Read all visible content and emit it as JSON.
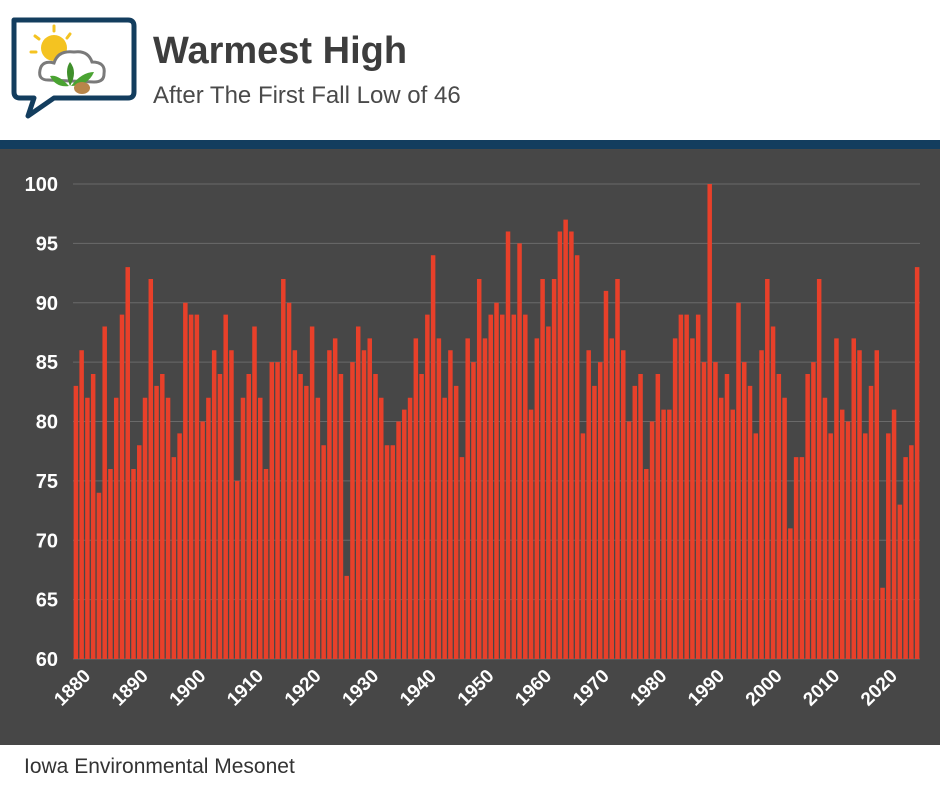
{
  "header": {
    "title": "Warmest High",
    "subtitle": "After The First Fall Low of 46"
  },
  "footer": {
    "credit": "Iowa Environmental Mesonet"
  },
  "colors": {
    "bar": "#e8402a",
    "plot_background": "#474747",
    "grid": "#6a6a6a",
    "divider": "#133d5e",
    "text": "#ffffff"
  },
  "chart_data": {
    "type": "bar",
    "title": "Warmest High",
    "subtitle": "After The First Fall Low of 46",
    "xlabel": "",
    "ylabel": "",
    "ylim": [
      60,
      100
    ],
    "xlim": [
      1879,
      2023
    ],
    "yticks": [
      60,
      65,
      70,
      75,
      80,
      85,
      90,
      95,
      100
    ],
    "xticks": [
      1880,
      1890,
      1900,
      1910,
      1920,
      1930,
      1940,
      1950,
      1960,
      1970,
      1980,
      1990,
      2000,
      2010,
      2020
    ],
    "grid": true,
    "legend": "none",
    "start_year": 1879,
    "values": [
      83,
      86,
      82,
      84,
      74,
      88,
      76,
      82,
      89,
      93,
      76,
      78,
      82,
      92,
      83,
      84,
      82,
      77,
      79,
      90,
      89,
      89,
      80,
      82,
      86,
      84,
      89,
      86,
      75,
      82,
      84,
      88,
      82,
      76,
      85,
      85,
      92,
      90,
      86,
      84,
      83,
      88,
      82,
      78,
      86,
      87,
      84,
      67,
      85,
      88,
      86,
      87,
      84,
      82,
      78,
      78,
      80,
      81,
      82,
      87,
      84,
      89,
      94,
      87,
      82,
      86,
      83,
      77,
      87,
      85,
      92,
      87,
      89,
      90,
      89,
      96,
      89,
      95,
      89,
      81,
      87,
      92,
      88,
      92,
      96,
      97,
      96,
      94,
      79,
      86,
      83,
      85,
      91,
      87,
      92,
      86,
      80,
      83,
      84,
      76,
      80,
      84,
      81,
      81,
      87,
      89,
      89,
      87,
      89,
      85,
      100,
      85,
      82,
      84,
      81,
      90,
      85,
      83,
      79,
      86,
      92,
      88,
      84,
      82,
      71,
      77,
      77,
      84,
      85,
      92,
      82,
      79,
      87,
      81,
      80,
      87,
      86,
      79,
      83,
      86,
      66,
      79,
      81,
      73,
      77,
      78,
      93
    ]
  }
}
